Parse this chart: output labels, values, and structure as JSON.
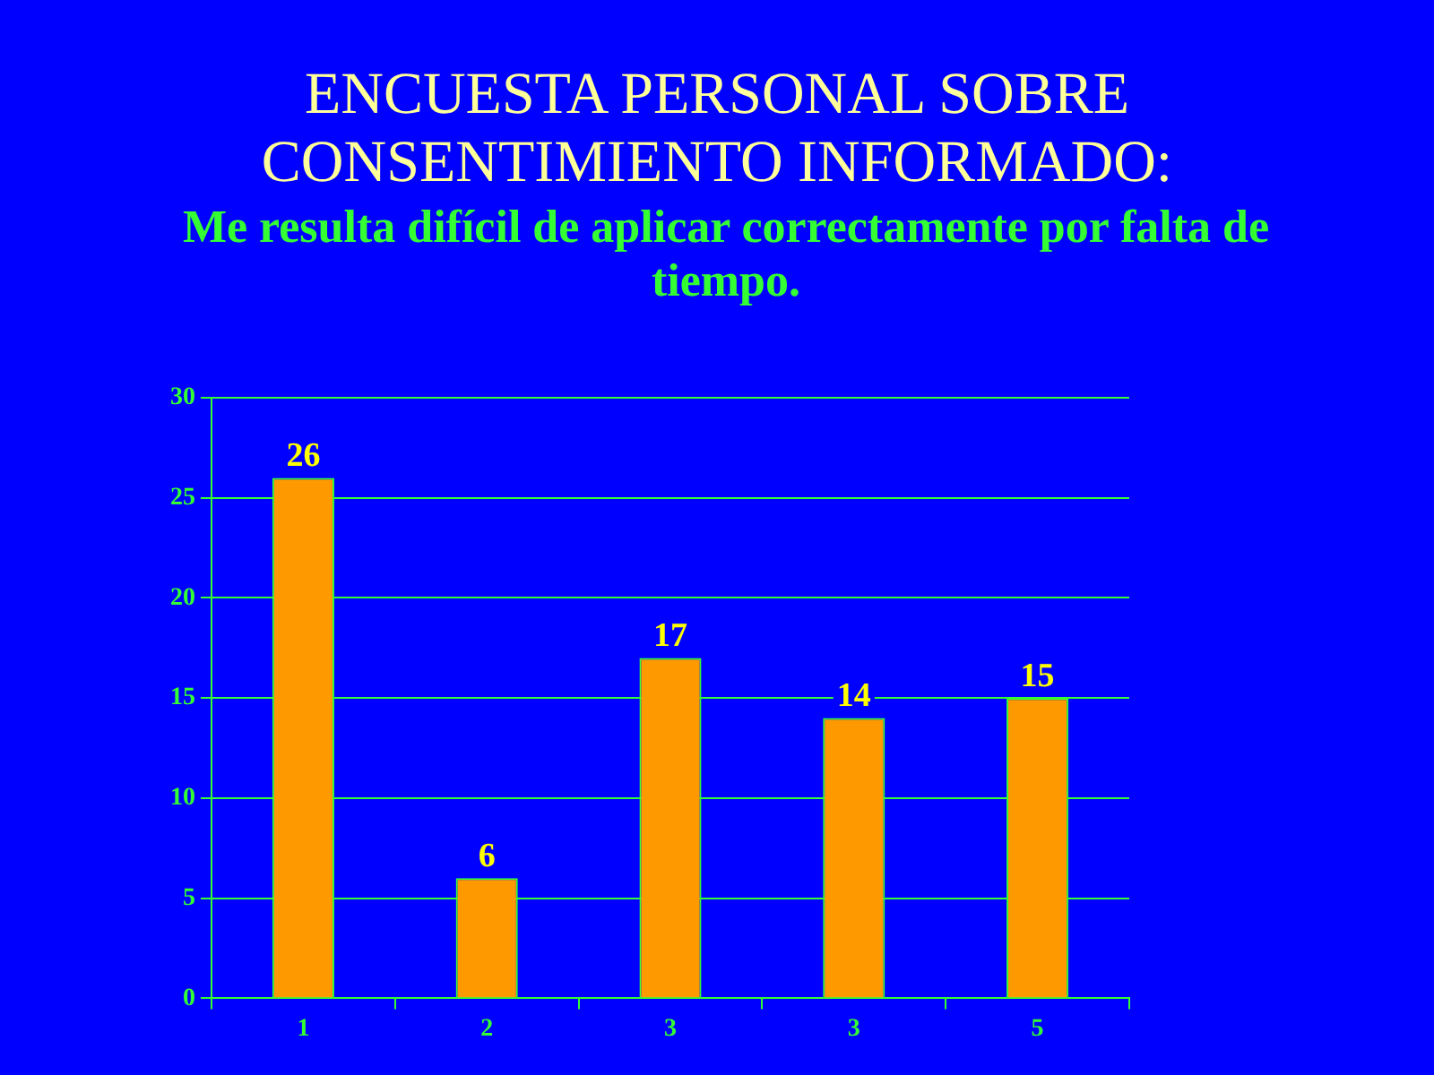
{
  "chart_data": {
    "type": "bar",
    "title": "ENCUESTA PERSONAL SOBRE CONSENTIMIENTO INFORMADO:",
    "subtitle": "Me resulta difícil de aplicar correctamente por falta de tiempo.",
    "categories": [
      "1",
      "2",
      "3",
      "3",
      "5"
    ],
    "values": [
      26,
      6,
      17,
      14,
      15
    ],
    "color": "#ff9900",
    "ylim": [
      0,
      30
    ],
    "yticks": [
      0,
      5,
      10,
      15,
      20,
      25,
      30
    ],
    "grid": "y",
    "data_labels": true
  }
}
